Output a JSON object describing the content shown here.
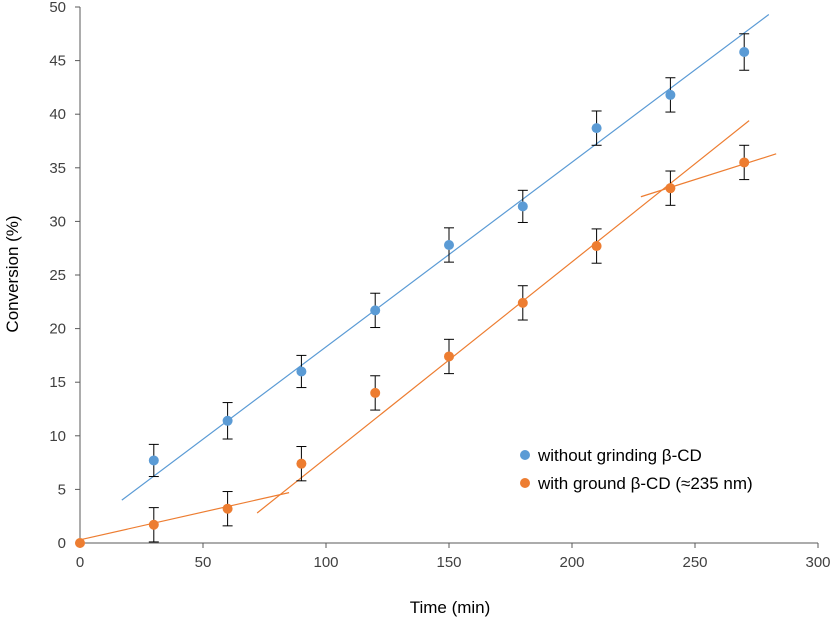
{
  "chart_data": {
    "type": "scatter",
    "title": "",
    "xlabel": "Time (min)",
    "ylabel": "Conversion (%)",
    "xlim": [
      0,
      300
    ],
    "ylim": [
      0,
      50
    ],
    "xticks": [
      0,
      50,
      100,
      150,
      200,
      250,
      300
    ],
    "yticks": [
      0,
      5,
      10,
      15,
      20,
      25,
      30,
      35,
      40,
      45,
      50
    ],
    "grid": false,
    "legend_position": "bottom-right",
    "series": [
      {
        "name": "without grinding β-CD",
        "color": "#5b9bd5",
        "x": [
          30,
          60,
          90,
          120,
          150,
          180,
          210,
          240,
          270
        ],
        "y": [
          7.7,
          11.4,
          16.0,
          21.7,
          27.8,
          31.4,
          38.7,
          41.8,
          45.8
        ],
        "error": [
          1.5,
          1.7,
          1.5,
          1.6,
          1.6,
          1.5,
          1.6,
          1.6,
          1.7
        ],
        "trendlines": [
          {
            "x": [
              17,
              280
            ],
            "y": [
              4.0,
              49.3
            ]
          }
        ]
      },
      {
        "name": "with ground β-CD (≈235 nm)",
        "color": "#ed7d31",
        "x": [
          0,
          30,
          60,
          90,
          120,
          150,
          180,
          210,
          240,
          270
        ],
        "y": [
          0.0,
          1.7,
          3.2,
          7.4,
          14.0,
          17.4,
          22.4,
          27.7,
          33.1,
          35.5
        ],
        "error": [
          0,
          1.6,
          1.6,
          1.6,
          1.6,
          1.6,
          1.6,
          1.6,
          1.6,
          1.6
        ],
        "trendlines": [
          {
            "x": [
              0,
              85
            ],
            "y": [
              0.3,
              4.7
            ]
          },
          {
            "x": [
              72,
              272
            ],
            "y": [
              2.8,
              39.4
            ]
          },
          {
            "x": [
              228,
              283
            ],
            "y": [
              32.3,
              36.3
            ]
          }
        ]
      }
    ]
  }
}
